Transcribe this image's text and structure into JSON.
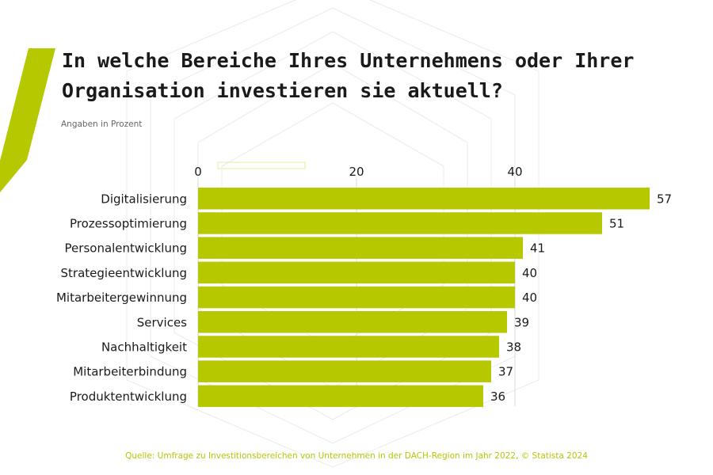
{
  "title": "In welche Bereiche Ihres Unternehmens oder Ihrer Organisation investieren sie aktuell?",
  "subtitle": "Angaben in Prozent",
  "source": "Quelle: Umfrage zu Investitionsbereichen von Unternehmen in der DACH-Region im Jahr 2022, © Statista 2024",
  "colors": {
    "bar": "#b5c800",
    "accent": "#b5c800",
    "text": "#1a1a1a"
  },
  "chart_data": {
    "type": "bar",
    "orientation": "horizontal",
    "categories": [
      "Digitalisierung",
      "Prozessoptimierung",
      "Personalentwicklung",
      "Strategieentwicklung",
      "Mitarbeitergewinnung",
      "Services",
      "Nachhaltigkeit",
      "Mitarbeiterbindung",
      "Produktentwicklung"
    ],
    "values": [
      57,
      51,
      41,
      40,
      40,
      39,
      38,
      37,
      36
    ],
    "xticks": [
      "0",
      "20",
      "40"
    ],
    "xlim": [
      0,
      60
    ],
    "xaxis_position": "top",
    "title": "In welche Bereiche Ihres Unternehmens oder Ihrer Organisation investieren sie aktuell?",
    "subtitle": "Angaben in Prozent",
    "xlabel": "",
    "ylabel": "",
    "grid": true,
    "data_labels": true
  }
}
